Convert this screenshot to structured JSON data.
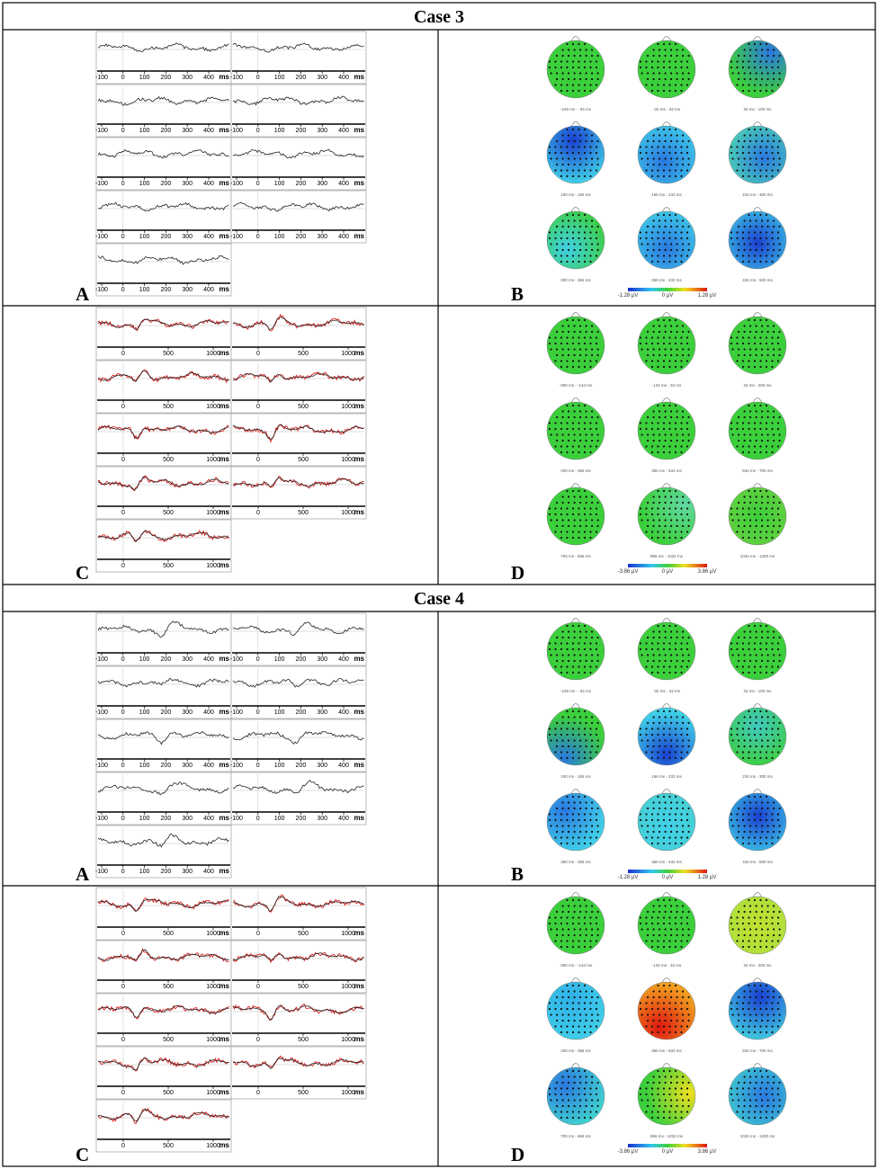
{
  "cases": [
    {
      "title": "Case 3",
      "panels": [
        {
          "letter": "A",
          "xlim": [
            -125,
            505
          ],
          "ticks": [
            -100,
            0,
            100,
            200,
            300,
            400
          ],
          "unit": "ms"
        },
        {
          "letter": "B",
          "maps": [
            "-100 ms - -34 ms",
            "-32 ms - 32 ms",
            "34 ms - 100 ms",
            "100 ms - 166 ms",
            "166 ms - 232 ms",
            "234 ms - 300 ms",
            "300 ms - 366 ms",
            "366 ms - 432 ms",
            "434 ms - 500 ms"
          ],
          "scale": [
            "-1.28 µV",
            "0 µV",
            "1.28 µV"
          ]
        },
        {
          "letter": "C",
          "xlim": [
            -300,
            1200
          ],
          "ticks": [
            0,
            500,
            1000
          ],
          "unit": "ms"
        },
        {
          "letter": "D",
          "maps": [
            "-300 ms - -134 ms",
            "-134 ms - 32 ms",
            "34 ms - 200 ms",
            "200 ms - 366 ms",
            "366 ms - 532 ms",
            "534 ms - 700 ms",
            "700 ms - 866 ms",
            "866 ms - 1032 ms",
            "1034 ms - 1200 ms"
          ],
          "scale": [
            "-3.86 µV",
            "0 µV",
            "3.86 µV"
          ]
        }
      ]
    },
    {
      "title": "Case 4",
      "panels": [
        {
          "letter": "A",
          "xlim": [
            -125,
            505
          ],
          "ticks": [
            -100,
            0,
            100,
            200,
            300,
            400
          ],
          "unit": "ms"
        },
        {
          "letter": "B",
          "maps": [
            "-100 ms - -34 ms",
            "-32 ms - 32 ms",
            "34 ms - 100 ms",
            "100 ms - 166 ms",
            "166 ms - 232 ms",
            "234 ms - 300 ms",
            "300 ms - 366 ms",
            "366 ms - 432 ms",
            "434 ms - 500 ms"
          ],
          "scale": [
            "-1.28 µV",
            "0 µV",
            "1.28 µV"
          ]
        },
        {
          "letter": "C",
          "xlim": [
            -300,
            1200
          ],
          "ticks": [
            0,
            500,
            1000
          ],
          "unit": "ms"
        },
        {
          "letter": "D",
          "maps": [
            "-300 ms - -134 ms",
            "-134 ms - 32 ms",
            "34 ms - 200 ms",
            "200 ms - 366 ms",
            "366 ms - 532 ms",
            "534 ms - 700 ms",
            "700 ms - 866 ms",
            "866 ms - 1032 ms",
            "1034 ms - 1200 ms"
          ],
          "scale": [
            "-3.86 µV",
            "0 µV",
            "3.86 µV"
          ]
        }
      ]
    }
  ]
}
